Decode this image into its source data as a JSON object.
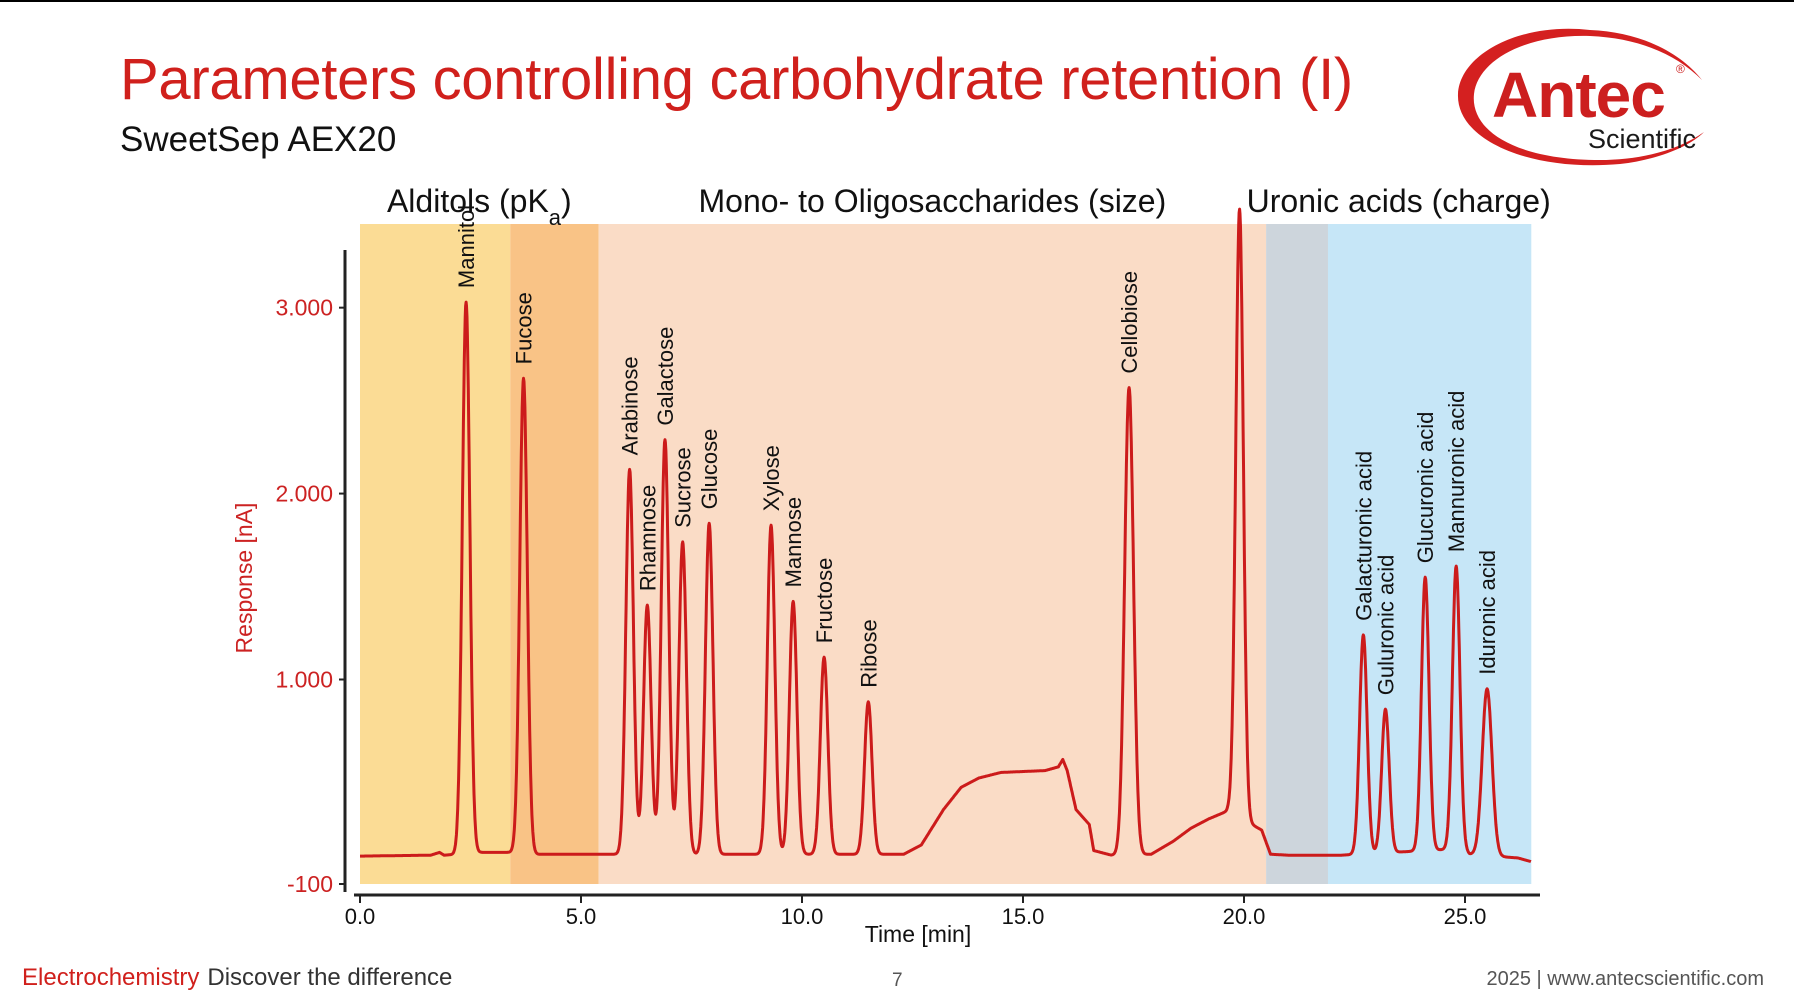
{
  "slide": {
    "title": "Parameters controlling carbohydrate retention (I)",
    "subtitle": "SweetSep AEX20",
    "logo_word": "Antec",
    "logo_sub": "Scientific",
    "footer_brand": "Electrochemistry",
    "footer_slogan": "Discover the difference",
    "page_number": "7",
    "footer_right": "2025 | www.antecscientific.com"
  },
  "chart_data": {
    "type": "line",
    "xlabel": "Time [min]",
    "ylabel": "Response [nA]",
    "xlim": [
      0,
      26.5
    ],
    "ylim": [
      -100,
      3500
    ],
    "x_ticks": [
      "0.0",
      "5.0",
      "10.0",
      "15.0",
      "20.0",
      "25.0"
    ],
    "y_ticks": [
      "-100",
      "1.000",
      "2.000",
      "3.000"
    ],
    "colors": {
      "trace": "#cc1b1b",
      "axis_text": "#cc2222"
    },
    "regions": [
      {
        "label": "Alditols (pK",
        "label_sub": "a",
        "label_end": ")",
        "x0": 0,
        "x1": 5.4,
        "color": "#fbd98f"
      },
      {
        "label": "Mono- to Oligosaccharides (size)",
        "x0": 5.4,
        "x1": 20.5,
        "color": "#fadcc6"
      },
      {
        "label": "Uronic acids (charge)",
        "x0": 20.5,
        "x1": 26.5,
        "color": "#c6e6f7"
      }
    ],
    "bands": [
      {
        "x0": 0,
        "x1": 3.4,
        "color": "#fbdc95"
      },
      {
        "x0": 3.4,
        "x1": 5.4,
        "color": "#f9c386"
      },
      {
        "x0": 5.4,
        "x1": 20.5,
        "color": "#fadcc6"
      },
      {
        "x0": 20.5,
        "x1": 21.9,
        "color": "#cdd5dc"
      },
      {
        "x0": 21.9,
        "x1": 26.5,
        "color": "#c6e6f7"
      }
    ],
    "peaks": [
      {
        "name": "Mannitol",
        "t": 2.4,
        "height": 3030
      },
      {
        "name": "Fucose",
        "t": 3.7,
        "height": 2620
      },
      {
        "name": "Arabinose",
        "t": 6.1,
        "height": 2130
      },
      {
        "name": "Rhamnose",
        "t": 6.5,
        "height": 1400
      },
      {
        "name": "Galactose",
        "t": 6.9,
        "height": 2290
      },
      {
        "name": "Sucrose",
        "t": 7.3,
        "height": 1740
      },
      {
        "name": "Glucose",
        "t": 7.9,
        "height": 1840
      },
      {
        "name": "Xylose",
        "t": 9.3,
        "height": 1830
      },
      {
        "name": "Mannose",
        "t": 9.8,
        "height": 1420
      },
      {
        "name": "Fructose",
        "t": 10.5,
        "height": 1120
      },
      {
        "name": "Ribose",
        "t": 11.5,
        "height": 880
      },
      {
        "name": "Cellobiose",
        "t": 17.4,
        "height": 2570
      },
      {
        "name": "",
        "t": 19.9,
        "height": 3530
      },
      {
        "name": "Galacturonic acid",
        "t": 22.7,
        "height": 1240
      },
      {
        "name": "Guluronic acid",
        "t": 23.2,
        "height": 840
      },
      {
        "name": "Glucuronic acid",
        "t": 24.1,
        "height": 1550
      },
      {
        "name": "Mannuronic acid",
        "t": 24.8,
        "height": 1610
      },
      {
        "name": "Iduronic acid",
        "t": 25.5,
        "height": 950
      }
    ],
    "baseline": [
      [
        0.0,
        50
      ],
      [
        1.6,
        55
      ],
      [
        1.8,
        70
      ],
      [
        1.9,
        55
      ],
      [
        2.2,
        60
      ],
      [
        2.3,
        70
      ],
      [
        3.5,
        70
      ],
      [
        4.0,
        60
      ],
      [
        5.5,
        60
      ],
      [
        11.8,
        60
      ],
      [
        12.3,
        60
      ],
      [
        12.7,
        110
      ],
      [
        13.2,
        300
      ],
      [
        13.6,
        420
      ],
      [
        14.0,
        470
      ],
      [
        14.5,
        500
      ],
      [
        15.0,
        505
      ],
      [
        15.5,
        510
      ],
      [
        15.8,
        530
      ],
      [
        15.9,
        570
      ],
      [
        16.0,
        510
      ],
      [
        16.2,
        300
      ],
      [
        16.5,
        220
      ],
      [
        16.6,
        80
      ],
      [
        17.0,
        55
      ],
      [
        17.9,
        60
      ],
      [
        18.4,
        130
      ],
      [
        18.8,
        200
      ],
      [
        19.2,
        250
      ],
      [
        19.6,
        290
      ],
      [
        19.8,
        330
      ],
      [
        20.1,
        230
      ],
      [
        20.4,
        190
      ],
      [
        20.6,
        60
      ],
      [
        21.0,
        55
      ],
      [
        22.2,
        55
      ],
      [
        24.9,
        90
      ],
      [
        25.1,
        60
      ],
      [
        26.2,
        40
      ],
      [
        26.5,
        20
      ]
    ]
  }
}
